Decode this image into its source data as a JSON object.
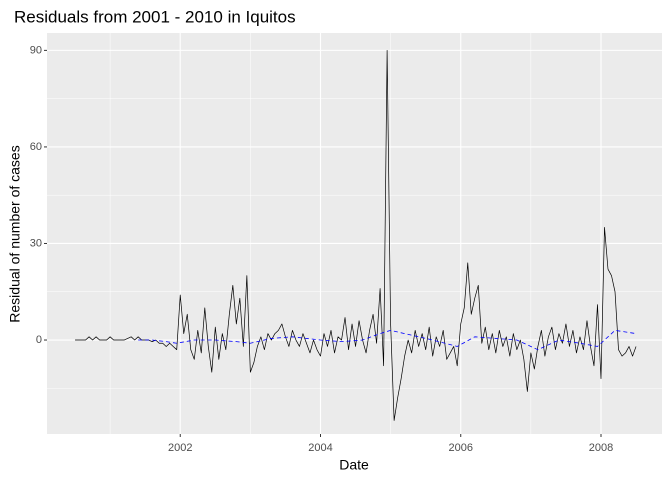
{
  "chart_data": {
    "type": "line",
    "title": "Residuals from 2001 - 2010 in Iquitos",
    "x_label": "Date",
    "y_label": "Residual of number of cases",
    "xlim": [
      2000.1,
      2008.87
    ],
    "ylim": [
      -29.2,
      95.4
    ],
    "xticks": [
      2002,
      2004,
      2006,
      2008
    ],
    "yticks": [
      0,
      30,
      60,
      90
    ],
    "x_minor": [
      2001,
      2003,
      2005,
      2007
    ],
    "y_minor": [
      -15,
      15,
      45,
      75
    ],
    "grid": true,
    "series": [
      {
        "color": "#000000",
        "dash": false,
        "x": [
          2000.5,
          2000.55,
          2000.6,
          2000.65,
          2000.7,
          2000.75,
          2000.8,
          2000.85,
          2000.9,
          2000.95,
          2001,
          2001.05,
          2001.1,
          2001.15,
          2001.2,
          2001.25,
          2001.3,
          2001.35,
          2001.4,
          2001.45,
          2001.5,
          2001.55,
          2001.6,
          2001.65,
          2001.7,
          2001.75,
          2001.8,
          2001.85,
          2001.9,
          2001.95,
          2002,
          2002.05,
          2002.1,
          2002.15,
          2002.2,
          2002.25,
          2002.3,
          2002.35,
          2002.4,
          2002.45,
          2002.5,
          2002.55,
          2002.6,
          2002.65,
          2002.7,
          2002.75,
          2002.8,
          2002.85,
          2002.9,
          2002.95,
          2003,
          2003.05,
          2003.1,
          2003.15,
          2003.2,
          2003.25,
          2003.3,
          2003.35,
          2003.4,
          2003.45,
          2003.5,
          2003.55,
          2003.6,
          2003.65,
          2003.7,
          2003.75,
          2003.8,
          2003.85,
          2003.9,
          2003.95,
          2004,
          2004.05,
          2004.1,
          2004.15,
          2004.2,
          2004.25,
          2004.3,
          2004.35,
          2004.4,
          2004.45,
          2004.5,
          2004.55,
          2004.6,
          2004.65,
          2004.7,
          2004.75,
          2004.8,
          2004.85,
          2004.9,
          2004.95,
          2005,
          2005.05,
          2005.1,
          2005.15,
          2005.2,
          2005.25,
          2005.3,
          2005.35,
          2005.4,
          2005.45,
          2005.5,
          2005.55,
          2005.6,
          2005.65,
          2005.7,
          2005.75,
          2005.8,
          2005.85,
          2005.9,
          2005.95,
          2006,
          2006.05,
          2006.1,
          2006.15,
          2006.2,
          2006.25,
          2006.3,
          2006.35,
          2006.4,
          2006.45,
          2006.5,
          2006.55,
          2006.6,
          2006.65,
          2006.7,
          2006.75,
          2006.8,
          2006.85,
          2006.9,
          2006.95,
          2007,
          2007.05,
          2007.1,
          2007.15,
          2007.2,
          2007.25,
          2007.3,
          2007.35,
          2007.4,
          2007.45,
          2007.5,
          2007.55,
          2007.6,
          2007.65,
          2007.7,
          2007.75,
          2007.8,
          2007.85,
          2007.9,
          2007.95,
          2008,
          2008.05,
          2008.1,
          2008.15,
          2008.2,
          2008.25,
          2008.3,
          2008.35,
          2008.4,
          2008.45,
          2008.5
        ],
        "values": [
          0,
          0,
          0,
          0,
          1,
          0,
          1,
          0,
          0,
          0,
          1,
          0,
          0,
          0,
          0,
          0.5,
          1,
          0,
          1,
          0,
          0,
          0,
          -0.5,
          0,
          -1,
          -1,
          -2,
          -1,
          -2,
          -3,
          14,
          2,
          8,
          -3,
          -6,
          3,
          -4,
          10,
          -2,
          -10,
          4,
          -6,
          2,
          -3,
          8,
          17,
          5,
          13,
          -2,
          20,
          -10,
          -7,
          -2,
          1,
          -3,
          2,
          0,
          2,
          3,
          5,
          1,
          -2,
          3,
          0,
          -2,
          2,
          -1,
          -4,
          0,
          -3,
          -5,
          2,
          -2,
          3,
          -4,
          1,
          0,
          7,
          -3,
          5,
          -2,
          6,
          0,
          -4,
          3,
          8,
          -1,
          16,
          -8,
          90,
          5,
          -25,
          -18,
          -12,
          -5,
          0,
          -4,
          3,
          -2,
          2,
          -3,
          4,
          -5,
          1,
          -2,
          3,
          -6,
          -4,
          -2,
          -8,
          5,
          10,
          24,
          8,
          13,
          17,
          -1,
          4,
          -3,
          2,
          -4,
          3,
          -2,
          1,
          -5,
          2,
          -3,
          0,
          -6,
          -16,
          -4,
          -9,
          -2,
          3,
          -5,
          1,
          4,
          -3,
          2,
          -1,
          5,
          -2,
          3,
          -4,
          1,
          -3,
          6,
          -2,
          -8,
          11,
          -12,
          35,
          22,
          20,
          15,
          -3,
          -5,
          -4,
          -2,
          -5,
          -2
        ]
      },
      {
        "color": "#0000ff",
        "dash": true,
        "x": [
          2001.4,
          2001.6,
          2001.8,
          2001.95,
          2002.2,
          2002.5,
          2002.8,
          2003,
          2003.3,
          2003.6,
          2004,
          2004.3,
          2004.6,
          2004.85,
          2005,
          2005.3,
          2005.6,
          2005.95,
          2006.2,
          2006.5,
          2006.8,
          2007.1,
          2007.4,
          2007.7,
          2007.95,
          2008.2,
          2008.5
        ],
        "values": [
          0,
          0,
          -0.5,
          -1,
          0,
          0,
          -0.5,
          -1,
          0.5,
          1,
          0,
          -0.5,
          0,
          2,
          3,
          1.5,
          0,
          -2,
          1,
          0.5,
          0,
          -3,
          0,
          -1,
          -2,
          3,
          2
        ]
      }
    ]
  }
}
